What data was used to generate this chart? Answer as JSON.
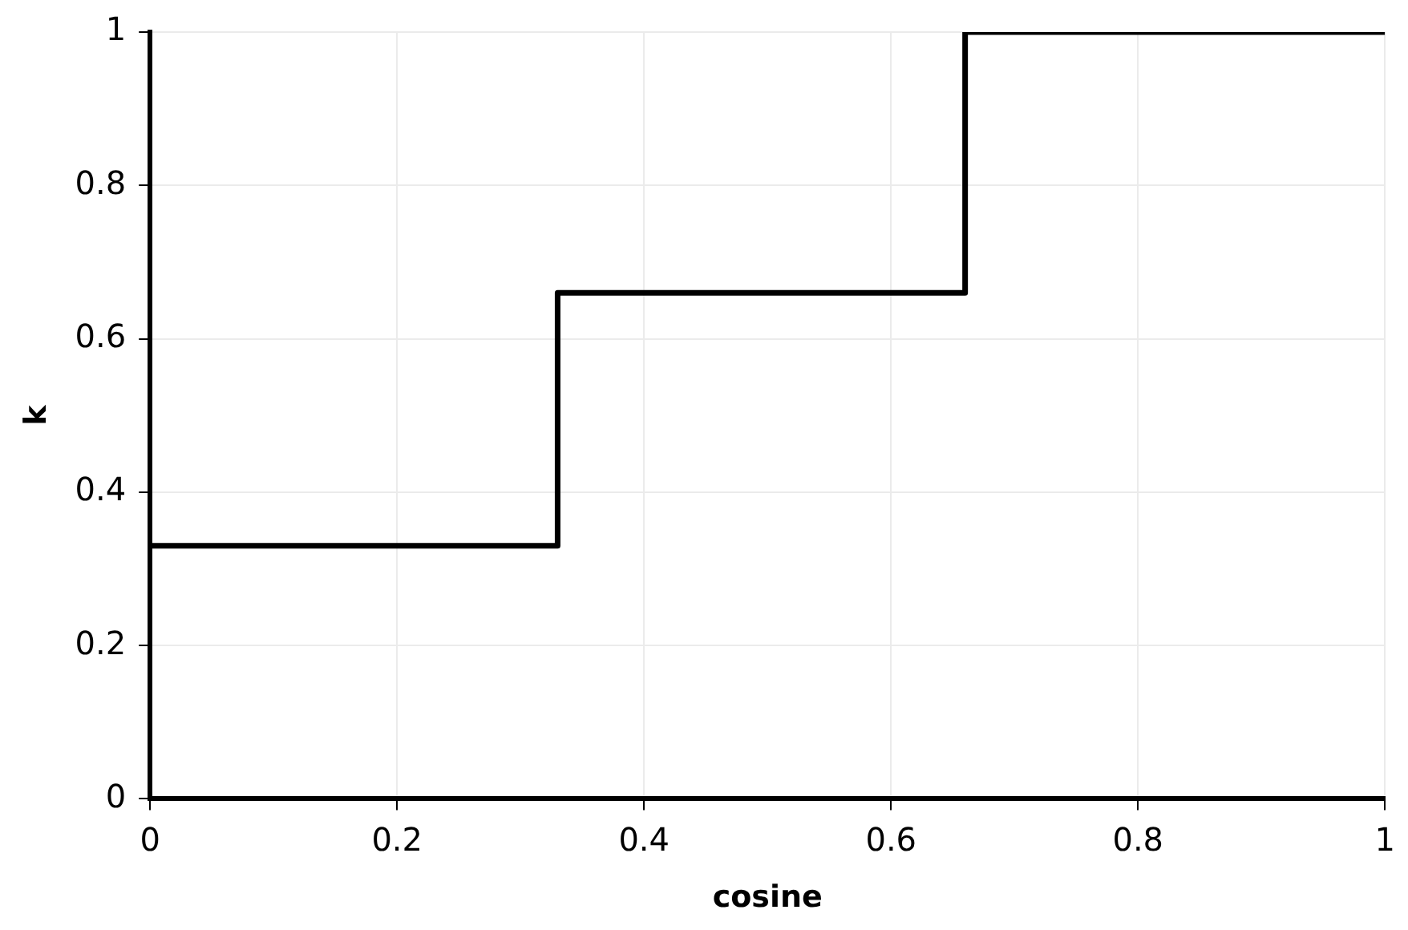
{
  "chart_data": {
    "type": "step",
    "xlabel": "cosine",
    "ylabel": "k",
    "x": [
      0,
      0.33,
      0.66,
      1
    ],
    "series": [
      {
        "color": "#000000",
        "values": [
          0.33,
          0.66,
          1,
          1
        ]
      }
    ],
    "xlim": [
      0,
      1
    ],
    "ylim": [
      0,
      1
    ],
    "xticks": [
      0,
      0.2,
      0.4,
      0.6,
      0.8,
      1
    ],
    "yticks": [
      0,
      0.2,
      0.4,
      0.6,
      0.8,
      1
    ],
    "grid": true,
    "legend": false
  }
}
